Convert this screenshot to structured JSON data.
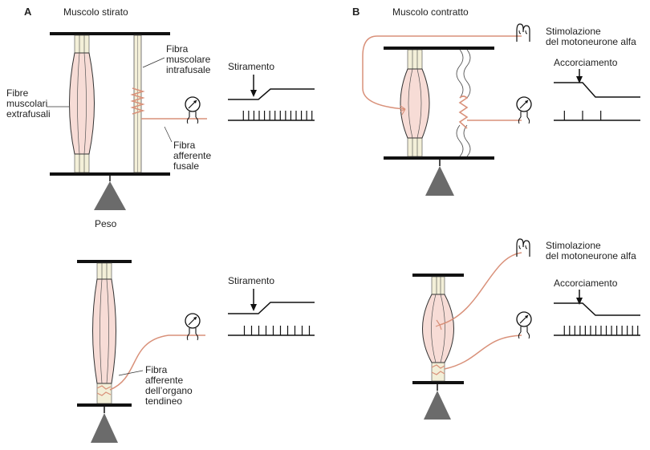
{
  "panels": {
    "a": {
      "letter": "A",
      "title": "Muscolo stirato",
      "labels": {
        "extrafusal": "Fibre\nmuscolari\nextrafusali",
        "intrafusal": "Fibra\nmuscolare\nintrafusale",
        "stretch_top": "Stiramento",
        "spindle_afferent": "Fibra\nafferente\nfusale",
        "weight": "Peso",
        "stretch_bottom": "Stiramento",
        "tendon_afferent": "Fibra\nafferente\ndell’organo\ntendineo"
      }
    },
    "b": {
      "letter": "B",
      "title": "Muscolo contratto",
      "labels": {
        "alpha_top": "Stimolazione\ndel motoneurone alfa",
        "shortening_top": "Accorciamento",
        "alpha_bottom": "Stimolazione\ndel motoneurone alfa",
        "shortening_bottom": "Accorciamento"
      }
    }
  },
  "recordings": {
    "a_top_spike_count": 14,
    "a_bottom_spike_count": 10,
    "b_top_spike_count": 3,
    "b_bottom_spike_count": 15
  },
  "colors": {
    "muscle_fill": "#f7dcd6",
    "nerve": "#d9917a",
    "tendon": "#f3efd8",
    "line": "#111111",
    "weight": "#6b6b6b"
  }
}
